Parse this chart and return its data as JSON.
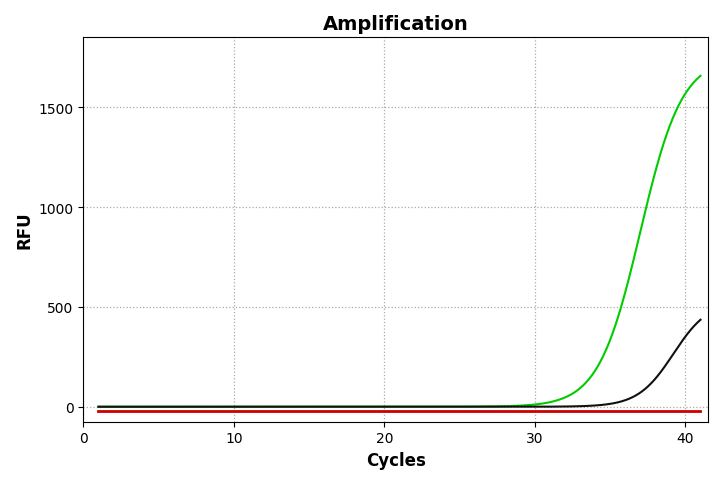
{
  "title": "Amplification",
  "xlabel": "Cycles",
  "ylabel": "RFU",
  "xlim": [
    0.5,
    41.5
  ],
  "ylim": [
    -75,
    1850
  ],
  "xticks": [
    0,
    10,
    20,
    30,
    40
  ],
  "yticks": [
    0,
    500,
    1000,
    1500
  ],
  "background_color": "#ffffff",
  "grid_color": "#aaaaaa",
  "green_color": "#00cc00",
  "black_color": "#111111",
  "red_color": "#cc0000",
  "green_cq": 37.0,
  "green_k": 0.72,
  "green_max": 1750,
  "black_cq": 39.2,
  "black_k": 0.85,
  "black_max": 530,
  "red_baseline": -20
}
